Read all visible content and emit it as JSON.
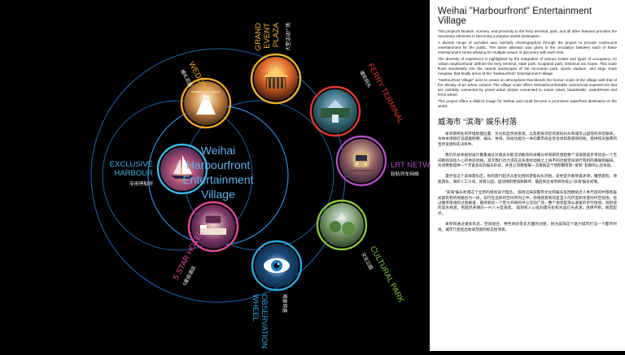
{
  "center": {
    "line1": "Weihai",
    "line2": "Harbourfront",
    "line3": "Entertainment",
    "line4": "Village"
  },
  "nodes": [
    {
      "id": "grand-event-plaza",
      "label_en": [
        "GRAND",
        "EVENT",
        "PLAZA"
      ],
      "label_zh": "大型活动广场",
      "color": "#e8b52a",
      "icon": "event-plaza-photo"
    },
    {
      "id": "ferry-terminal",
      "label_en": [
        "FERRY TERMINAL"
      ],
      "label_zh": "渡轮码头",
      "color": "#e23a2f",
      "icon": "ferry-terminal-photo"
    },
    {
      "id": "lrt-network",
      "label_en": [
        "LRT NETWORK"
      ],
      "label_zh": "轻轨列车网络",
      "color": "#b14fc4",
      "icon": "lrt-train-photo"
    },
    {
      "id": "cultural-park",
      "label_en": [
        "CULTURAL PARK"
      ],
      "label_zh": "文化公园",
      "color": "#8ec63f",
      "icon": "cultural-park-photo"
    },
    {
      "id": "observation-wheel",
      "label_en": [
        "OBSERVATION",
        "WHEEL"
      ],
      "label_zh": "观景转盘",
      "color": "#29a9e0",
      "icon": "eye-icon"
    },
    {
      "id": "five-star-hotel",
      "label_en": [
        "5 STAR HOTEL"
      ],
      "label_zh": "5星级酒店",
      "color": "#e44b9a",
      "icon": "hotel-room-photo"
    },
    {
      "id": "exclusive-harbour",
      "label_en": [
        "EXCLUSIVE",
        "HARBOUR"
      ],
      "label_zh": "专用停船坪",
      "color": "#3fb7e6",
      "icon": "harbour-sailboat-photo"
    },
    {
      "id": "wedding",
      "label_en": [
        "WEDDING"
      ],
      "label_zh": "婚礼花园",
      "color": "#f2a72a",
      "icon": "wedding-photo"
    }
  ],
  "text": {
    "title": "Weihai \"Harbourfront\" Entertainment Village",
    "en_paragraphs": [
      "This project's location, scenery, and proximity to the ferry terminal, park, and all other features provides the necessary elements in becoming a popular tourist destination.",
      "A diverse range of activities was carefully choreographed through the project to provide continuous entertainment for the public. The same attention was given to the circulation between each of these entertainment zones allowing for multiple means of discovery with each visit.",
      "The diversity of experience is highlighted by the integration of various scales and types of occupancy. An 'urban neighborhood' defines the ferry terminal, state park, sculptural park, historical tea house. This scale flows seamlessly into the natural landscapes of the recreation park, sports stadium, and large scale meadow, that finally arrive at the \"Harbourfront\" Entertainment Village.",
      "\"Harbourfront Village\" aims to create an atmosphere that blends the human scale of the village with that of the density of an urban context. The village scale offers intimate/comfortable commercial experiences that are carefully connected by grand urban plazas connected to ocean views, boardwalks ,waterbhows and ferris wheel.",
      "This project offers a distinct image for Weihai and could become a prominent waterfront destination in the world."
    ],
    "zh_title": "威海市 “滨海” 娱乐村落",
    "zh_paragraphs": [
      "本项目所处的环境地理位置、文化和自然效景观，以及距离邻近的渡轮码头和城市公园等的邻近联系，为将本项目打造成集购物、娱乐、休闲、商住功能为一体的都市商业综合体和旅游目的地，提供得天独厚的宝贵资源和先决条件。",
      "我们的总体规划设计着重通过对诸多功能活动板块的详细分析和研究围绕整个滨海游览步带创造一个无间断的滨动人心的体验动线。其次我们也力求在这条连续动线之上将不同功能空间进行有机的串联和编排，为消费者提供一个丰富多彩的娱乐形式，并且让消费者每一次来到这个场所都有新 “发现” 和新的心灵体验。",
      "漫步在这个滨海游乐区，你的旅行起点从星北侧的游船码头开始，途经室外奢侈遥冰场，雕塑庭院，滑板游乐，海岸人工沙滩，体育公园，运动场和更加新颖坪，最后到达本项目的核心“滨海”娱乐村落。",
      "“滨海”娱乐村落这个全新的规划设计理念， 抵将沿海滨都市文化和娱乐氛围脱贴近人体尺度的村落民居式建筑有机地融合为一体，穿行在这样的空间序列之中，你将感受到的是宜人的尺度和亲密的时空氛围，经过循序渐进的过渡廊道，最终到达一个宏大开阔的中心活动广场，整个视觉是渐从收紧的步行街道，到舒适的滨水栈道，到豁然开朗的一片八十度海景。 再到和人心弦的摩天轮和水晶灯光表演，连绵不断，跌宕起伏。",
      "本项目通过诸多形态、空间组合、特色体验等多方面的创新，将为威海这个魅力城市打造一个都市时尚，城市乃至起出地域范围的标志性项目。"
    ]
  }
}
